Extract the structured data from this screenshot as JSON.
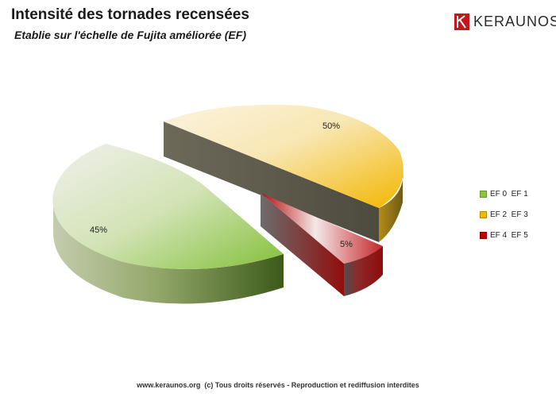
{
  "header": {
    "title": "Intensité des tornades recensées",
    "subtitle": "Etablie sur l'échelle de Fujita améliorée (EF)"
  },
  "logo": {
    "text": "KERAUNOS",
    "icon": "keraunos-k-icon",
    "color": "#c4161c"
  },
  "chart_data": {
    "type": "pie",
    "style": "3d-exploded",
    "categories": [
      "EF 0  EF 1",
      "EF 2  EF 3",
      "EF 4  EF 5"
    ],
    "values": [
      45,
      50,
      5
    ],
    "labels": [
      "45%",
      "50%",
      "5%"
    ],
    "colors": [
      "#8cc63f",
      "#f5b800",
      "#c00000"
    ],
    "legend": "right"
  },
  "footer": {
    "text": "www.keraunos.org  (c) Tous droits réservés - Reproduction et rediffusion interdites"
  }
}
